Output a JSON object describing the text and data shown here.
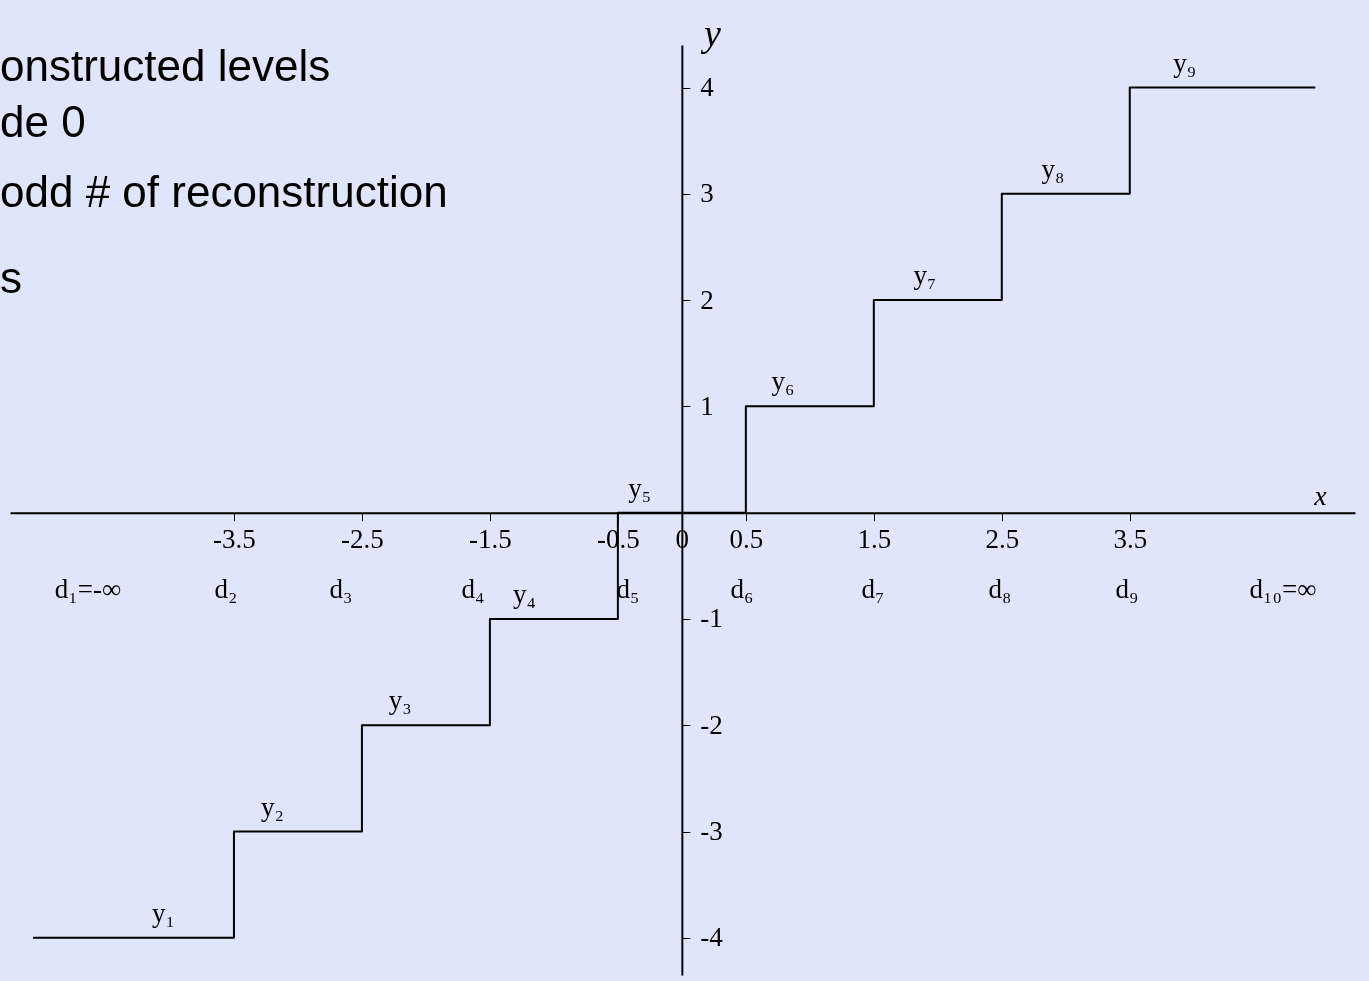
{
  "chart_data": {
    "type": "step",
    "xlabel": "x",
    "ylabel": "y",
    "x": [
      -5.07,
      -3.5,
      -2.5,
      -1.5,
      -0.5,
      0.5,
      1.5,
      2.5,
      3.5,
      4.95
    ],
    "values": [
      -4,
      -3,
      -2,
      -1,
      0,
      1,
      2,
      3,
      4,
      4
    ],
    "color": "#000000",
    "line_style": "solid",
    "marker": "none",
    "grid": false,
    "xlim": [
      -5.25,
      5.26
    ],
    "ylim": [
      -4.35,
      4.4
    ],
    "xticks": [
      -3.5,
      -2.5,
      -1.5,
      -0.5,
      0,
      0.5,
      1.5,
      2.5,
      3.5
    ],
    "yticks": [
      -4,
      -3,
      -2,
      -1,
      1,
      2,
      3,
      4
    ],
    "annotations": [
      "onstructed levels",
      "de 0",
      "odd # of reconstruction",
      "s",
      {
        "text": "y₁",
        "x": -4.05,
        "y": -4
      },
      {
        "text": "y₂",
        "x": -3.2,
        "y": -3
      },
      {
        "text": "y₃",
        "x": -2.2,
        "y": -2
      },
      {
        "text": "y₄",
        "x": -1.23,
        "y": -1
      },
      {
        "text": "y₅",
        "x": -0.33,
        "y": 0
      },
      {
        "text": "y₆",
        "x": 0.79,
        "y": 1
      },
      {
        "text": "y₇",
        "x": 1.9,
        "y": 2
      },
      {
        "text": "y₈",
        "x": 2.9,
        "y": 3
      },
      {
        "text": "y₉",
        "x": 3.93,
        "y": 4
      },
      "d₁=-∞",
      "d₂",
      "d₃",
      "d₄",
      "d₅",
      "d₆",
      "d₇",
      "d₈",
      "d₉",
      "d₁₀=∞"
    ]
  }
}
